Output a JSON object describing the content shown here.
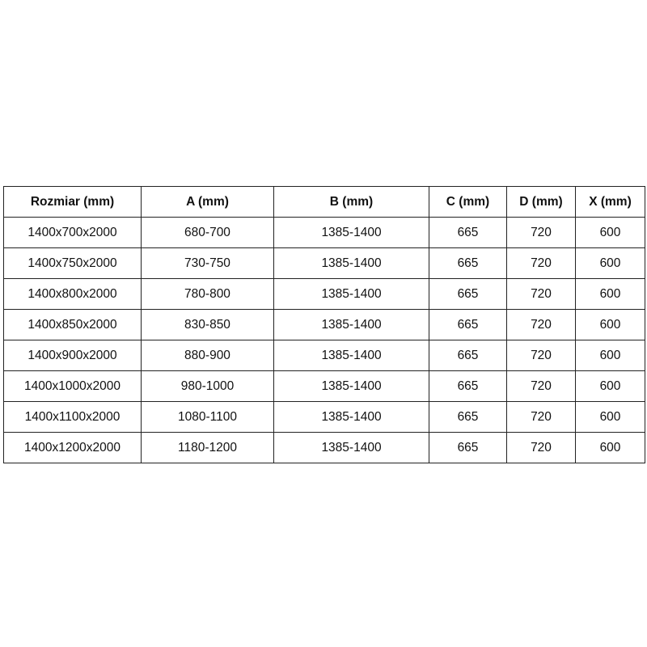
{
  "table": {
    "headers": [
      "Rozmiar (mm)",
      "A (mm)",
      "B (mm)",
      "C (mm)",
      "D (mm)",
      "X (mm)"
    ],
    "rows": [
      [
        "1400x700x2000",
        "680-700",
        "1385-1400",
        "665",
        "720",
        "600"
      ],
      [
        "1400x750x2000",
        "730-750",
        "1385-1400",
        "665",
        "720",
        "600"
      ],
      [
        "1400x800x2000",
        "780-800",
        "1385-1400",
        "665",
        "720",
        "600"
      ],
      [
        "1400x850x2000",
        "830-850",
        "1385-1400",
        "665",
        "720",
        "600"
      ],
      [
        "1400x900x2000",
        "880-900",
        "1385-1400",
        "665",
        "720",
        "600"
      ],
      [
        "1400x1000x2000",
        "980-1000",
        "1385-1400",
        "665",
        "720",
        "600"
      ],
      [
        "1400x1100x2000",
        "1080-1100",
        "1385-1400",
        "665",
        "720",
        "600"
      ],
      [
        "1400x1200x2000",
        "1180-1200",
        "1385-1400",
        "665",
        "720",
        "600"
      ]
    ]
  }
}
